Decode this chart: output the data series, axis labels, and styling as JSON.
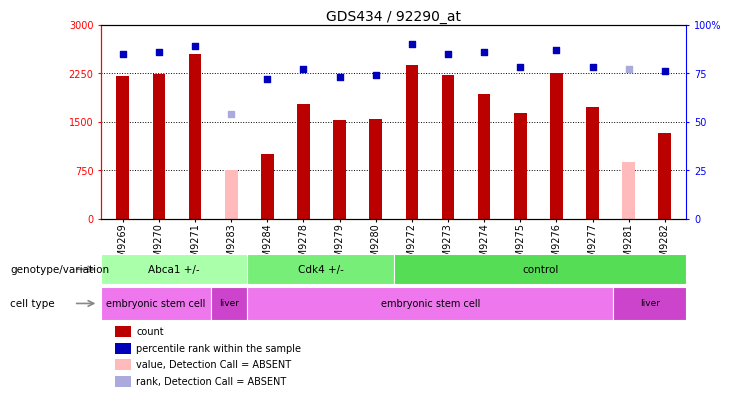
{
  "title": "GDS434 / 92290_at",
  "samples": [
    "GSM9269",
    "GSM9270",
    "GSM9271",
    "GSM9283",
    "GSM9284",
    "GSM9278",
    "GSM9279",
    "GSM9280",
    "GSM9272",
    "GSM9273",
    "GSM9274",
    "GSM9275",
    "GSM9276",
    "GSM9277",
    "GSM9281",
    "GSM9282"
  ],
  "counts": [
    2200,
    2230,
    2550,
    null,
    1000,
    1780,
    1520,
    1540,
    2370,
    2220,
    1930,
    1630,
    2250,
    1720,
    null,
    1320
  ],
  "counts_absent": [
    null,
    null,
    null,
    750,
    null,
    null,
    null,
    null,
    null,
    null,
    null,
    null,
    null,
    null,
    880,
    null
  ],
  "ranks": [
    85,
    86,
    89,
    null,
    72,
    77,
    73,
    74,
    90,
    85,
    86,
    78,
    87,
    78,
    null,
    76
  ],
  "ranks_absent": [
    null,
    null,
    null,
    null,
    null,
    null,
    null,
    null,
    null,
    null,
    null,
    null,
    null,
    null,
    77,
    null
  ],
  "ranks_absent2": [
    null,
    null,
    null,
    54,
    null,
    null,
    null,
    null,
    null,
    null,
    null,
    null,
    null,
    null,
    null,
    null
  ],
  "ylim_left": [
    0,
    3000
  ],
  "ylim_right": [
    0,
    100
  ],
  "yticks_left": [
    0,
    750,
    1500,
    2250,
    3000
  ],
  "ytick_labels_left": [
    "0",
    "750",
    "1500",
    "2250",
    "3000"
  ],
  "yticks_right": [
    0,
    25,
    50,
    75,
    100
  ],
  "ytick_labels_right": [
    "0",
    "25",
    "50",
    "75",
    "100%"
  ],
  "bar_color": "#bb0000",
  "bar_absent_color": "#ffbbbb",
  "rank_color": "#0000bb",
  "rank_absent_color": "#aaaadd",
  "grid_color": "#000000",
  "bg_color": "#ffffff",
  "plot_bg_color": "#ffffff",
  "genotype_groups": [
    {
      "label": "Abca1 +/-",
      "start": 0,
      "end": 4,
      "color": "#aaffaa"
    },
    {
      "label": "Cdk4 +/-",
      "start": 4,
      "end": 8,
      "color": "#77ee77"
    },
    {
      "label": "control",
      "start": 8,
      "end": 16,
      "color": "#55dd55"
    }
  ],
  "celltype_groups": [
    {
      "label": "embryonic stem cell",
      "start": 0,
      "end": 3,
      "color": "#ee77ee"
    },
    {
      "label": "liver",
      "start": 3,
      "end": 4,
      "color": "#cc44cc"
    },
    {
      "label": "embryonic stem cell",
      "start": 4,
      "end": 14,
      "color": "#ee77ee"
    },
    {
      "label": "liver",
      "start": 14,
      "end": 16,
      "color": "#cc44cc"
    }
  ],
  "legend_items": [
    {
      "color": "#bb0000",
      "label": "count"
    },
    {
      "color": "#0000bb",
      "label": "percentile rank within the sample"
    },
    {
      "color": "#ffbbbb",
      "label": "value, Detection Call = ABSENT"
    },
    {
      "color": "#aaaadd",
      "label": "rank, Detection Call = ABSENT"
    }
  ],
  "title_fontsize": 10,
  "tick_fontsize": 7,
  "label_fontsize": 8
}
